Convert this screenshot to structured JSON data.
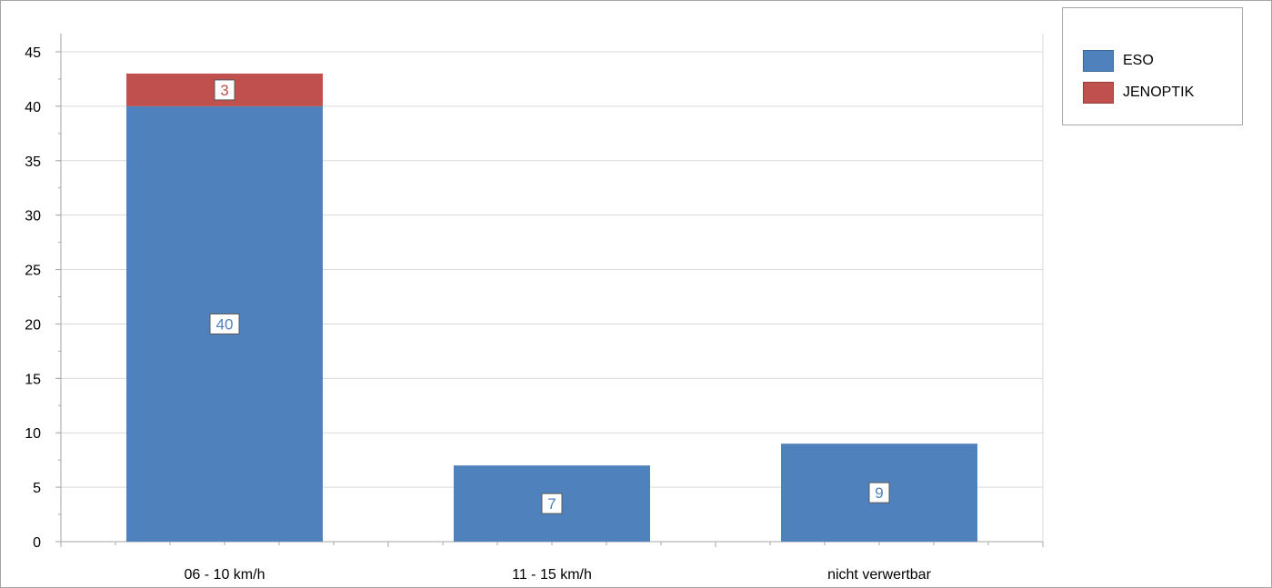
{
  "chart_data": {
    "type": "bar",
    "stacked": true,
    "categories": [
      "06 - 10 km/h",
      "11 - 15 km/h",
      "nicht verwertbar"
    ],
    "series": [
      {
        "name": "ESO",
        "values": [
          40,
          7,
          9
        ],
        "color": "#4f81bd"
      },
      {
        "name": "JENOPTIK",
        "values": [
          3,
          0,
          0
        ],
        "color": "#c0504d"
      }
    ],
    "ylim": [
      0,
      45
    ],
    "yticks": [
      0,
      5,
      10,
      15,
      20,
      25,
      30,
      35,
      40,
      45
    ],
    "grid": true,
    "legend_position": "top-right",
    "data_labels": true,
    "title": "",
    "xlabel": "",
    "ylabel": ""
  }
}
